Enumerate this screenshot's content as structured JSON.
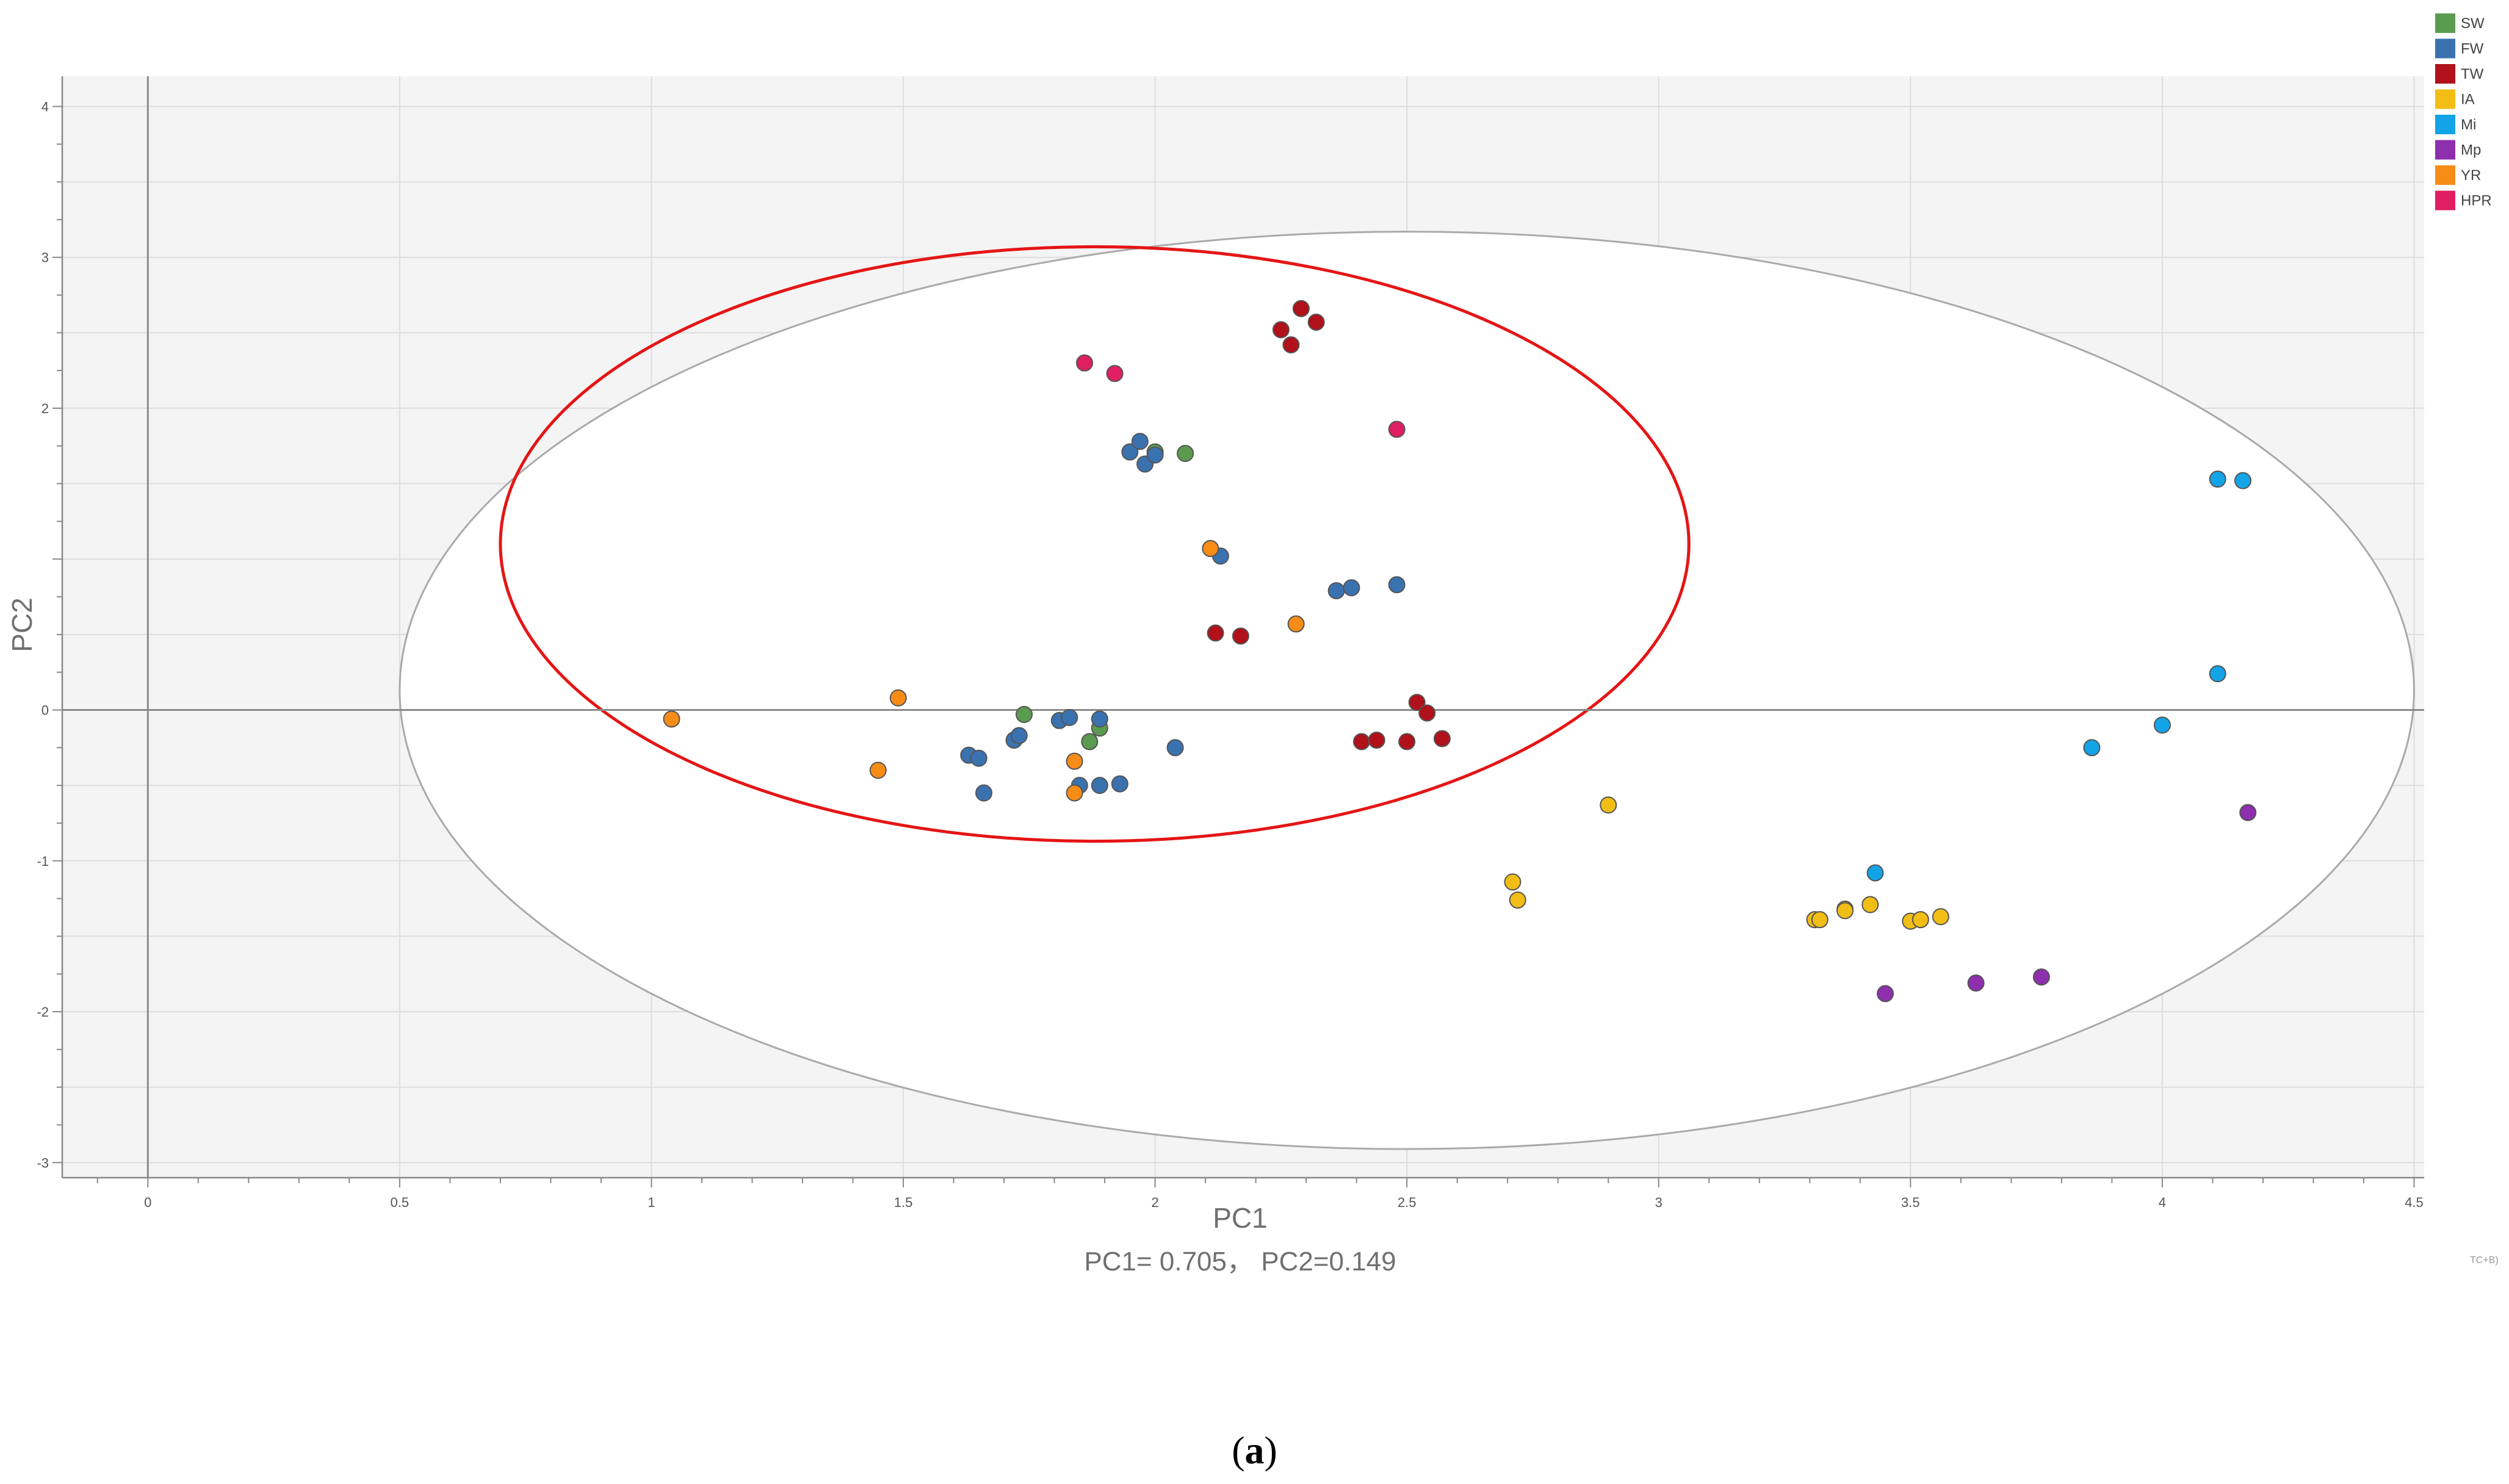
{
  "chart_data": {
    "type": "scatter",
    "title": "",
    "xlabel": "PC1",
    "ylabel": "PC2",
    "subtitle": "PC1= 0.705， PC2=0.149",
    "xlim": [
      -0.17,
      4.52
    ],
    "ylim": [
      -3.1,
      4.2
    ],
    "x_ticks": [
      0,
      0.5,
      1,
      1.5,
      2,
      2.5,
      3,
      3.5,
      4,
      4.5
    ],
    "x_tick_labels": [
      "0",
      "0.5",
      "1",
      "1.5",
      "2",
      "2.5",
      "3",
      "3.5",
      "4",
      "4.5"
    ],
    "y_ticks": [
      -3,
      -2,
      -1,
      0,
      2,
      3,
      4
    ],
    "y_tick_labels": [
      "-3",
      "-2",
      "-1",
      "0",
      "2",
      "3",
      "4"
    ],
    "grid": true,
    "legend_position": "top-right",
    "series": [
      {
        "name": "SW",
        "color": "#5B9B4F",
        "points": [
          [
            1.74,
            -0.03
          ],
          [
            1.87,
            -0.21
          ],
          [
            1.89,
            -0.12
          ],
          [
            2.0,
            1.71
          ],
          [
            2.06,
            1.7
          ]
        ]
      },
      {
        "name": "FW",
        "color": "#3A72B0",
        "points": [
          [
            1.63,
            -0.3
          ],
          [
            1.65,
            -0.32
          ],
          [
            1.66,
            -0.55
          ],
          [
            1.72,
            -0.2
          ],
          [
            1.73,
            -0.17
          ],
          [
            1.81,
            -0.07
          ],
          [
            1.83,
            -0.05
          ],
          [
            1.85,
            -0.5
          ],
          [
            1.89,
            -0.5
          ],
          [
            1.89,
            -0.06
          ],
          [
            1.93,
            -0.49
          ],
          [
            2.04,
            -0.25
          ],
          [
            1.95,
            1.71
          ],
          [
            1.97,
            1.78
          ],
          [
            1.98,
            1.63
          ],
          [
            2.0,
            1.69
          ],
          [
            2.13,
            1.02
          ],
          [
            2.36,
            0.79
          ],
          [
            2.39,
            0.81
          ],
          [
            2.48,
            0.83
          ]
        ]
      },
      {
        "name": "TW",
        "color": "#B0111A",
        "points": [
          [
            2.12,
            0.51
          ],
          [
            2.17,
            0.49
          ],
          [
            2.25,
            2.52
          ],
          [
            2.27,
            2.42
          ],
          [
            2.29,
            2.66
          ],
          [
            2.32,
            2.57
          ],
          [
            2.41,
            -0.21
          ],
          [
            2.44,
            -0.2
          ],
          [
            2.5,
            -0.21
          ],
          [
            2.52,
            0.05
          ],
          [
            2.54,
            -0.02
          ],
          [
            2.57,
            -0.19
          ]
        ]
      },
      {
        "name": "IA",
        "color": "#F2BE16",
        "points": [
          [
            2.71,
            -1.14
          ],
          [
            2.72,
            -1.26
          ],
          [
            2.9,
            -0.63
          ],
          [
            3.31,
            -1.39
          ],
          [
            3.32,
            -1.39
          ],
          [
            3.37,
            -1.32
          ],
          [
            3.37,
            -1.33
          ],
          [
            3.42,
            -1.29
          ],
          [
            3.5,
            -1.4
          ],
          [
            3.52,
            -1.39
          ],
          [
            3.56,
            -1.37
          ]
        ]
      },
      {
        "name": "Mi",
        "color": "#13A4E8",
        "points": [
          [
            3.43,
            -1.08
          ],
          [
            3.86,
            -0.25
          ],
          [
            4.0,
            -0.1
          ],
          [
            4.11,
            1.53
          ],
          [
            4.11,
            0.24
          ],
          [
            4.16,
            1.52
          ]
        ]
      },
      {
        "name": "Mp",
        "color": "#8E2FAE",
        "points": [
          [
            3.45,
            -1.88
          ],
          [
            3.63,
            -1.81
          ],
          [
            3.76,
            -1.77
          ],
          [
            4.17,
            -0.68
          ]
        ]
      },
      {
        "name": "YR",
        "color": "#F78C17",
        "points": [
          [
            1.04,
            -0.06
          ],
          [
            1.45,
            -0.4
          ],
          [
            1.49,
            0.08
          ],
          [
            1.84,
            -0.34
          ],
          [
            1.84,
            -0.55
          ],
          [
            2.11,
            1.07
          ],
          [
            2.28,
            0.57
          ]
        ]
      },
      {
        "name": "HPR",
        "color": "#E01E62",
        "points": [
          [
            1.86,
            2.3
          ],
          [
            1.92,
            2.23
          ],
          [
            2.48,
            1.86
          ]
        ]
      }
    ],
    "ellipses": [
      {
        "name": "gray confidence ellipse",
        "color": "#AAAAAA",
        "cx": 2.5,
        "cy": 0.13,
        "rx": 2.0,
        "ry": 3.04
      },
      {
        "name": "red confidence ellipse",
        "color": "#E51515",
        "cx": 1.88,
        "cy": 1.1,
        "rx": 1.18,
        "ry": 1.97
      }
    ]
  },
  "watermark": "TC+B)",
  "caption": {
    "label": "a"
  }
}
